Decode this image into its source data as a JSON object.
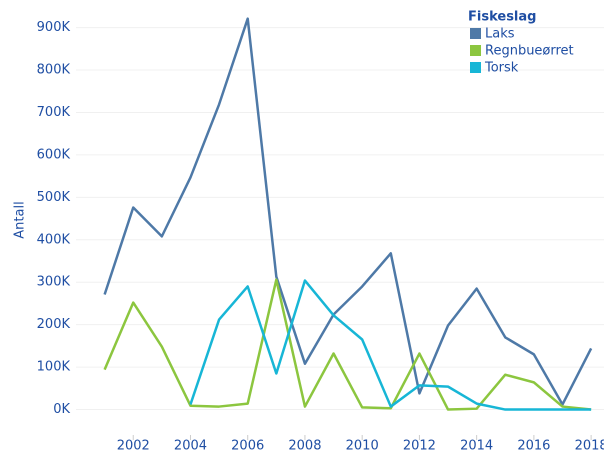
{
  "chart_data": {
    "type": "line",
    "y_label": "Antall",
    "legend_title": "Fiskeslag",
    "legend": "top-right",
    "grid": true,
    "x": [
      2001,
      2002,
      2003,
      2004,
      2005,
      2006,
      2007,
      2008,
      2009,
      2010,
      2011,
      2012,
      2013,
      2014,
      2015,
      2016,
      2017,
      2018
    ],
    "xlim": [
      2000,
      2018.45
    ],
    "xticks": [
      2002,
      2004,
      2006,
      2008,
      2010,
      2012,
      2014,
      2016,
      2018
    ],
    "ylim": [
      -60000,
      965000
    ],
    "yticks": [
      {
        "value": 0,
        "label": "0K"
      },
      {
        "value": 100000,
        "label": "100K"
      },
      {
        "value": 200000,
        "label": "200K"
      },
      {
        "value": 300000,
        "label": "300K"
      },
      {
        "value": 400000,
        "label": "400K"
      },
      {
        "value": 500000,
        "label": "500K"
      },
      {
        "value": 600000,
        "label": "600K"
      },
      {
        "value": 700000,
        "label": "700K"
      },
      {
        "value": 800000,
        "label": "800K"
      },
      {
        "value": 900000,
        "label": "900K"
      }
    ],
    "series": [
      {
        "name": "Laks",
        "color": "#4e79a7",
        "values": [
          271000,
          476000,
          408000,
          547000,
          719000,
          921000,
          313000,
          108000,
          224000,
          290000,
          368000,
          38000,
          198000,
          285000,
          170000,
          130000,
          12000,
          144000
        ]
      },
      {
        "name": "Regnbueørret",
        "color": "#8cc63f",
        "values": [
          94000,
          252000,
          148000,
          9000,
          7000,
          14000,
          306000,
          7000,
          132000,
          5000,
          3000,
          132000,
          0,
          2000,
          82000,
          64000,
          7000,
          0
        ]
      },
      {
        "name": "Torsk",
        "color": "#17b6d6",
        "values": [
          null,
          null,
          null,
          12000,
          212000,
          290000,
          85000,
          304000,
          222000,
          165000,
          7000,
          57000,
          54000,
          14000,
          0,
          0,
          0,
          0
        ]
      }
    ]
  }
}
